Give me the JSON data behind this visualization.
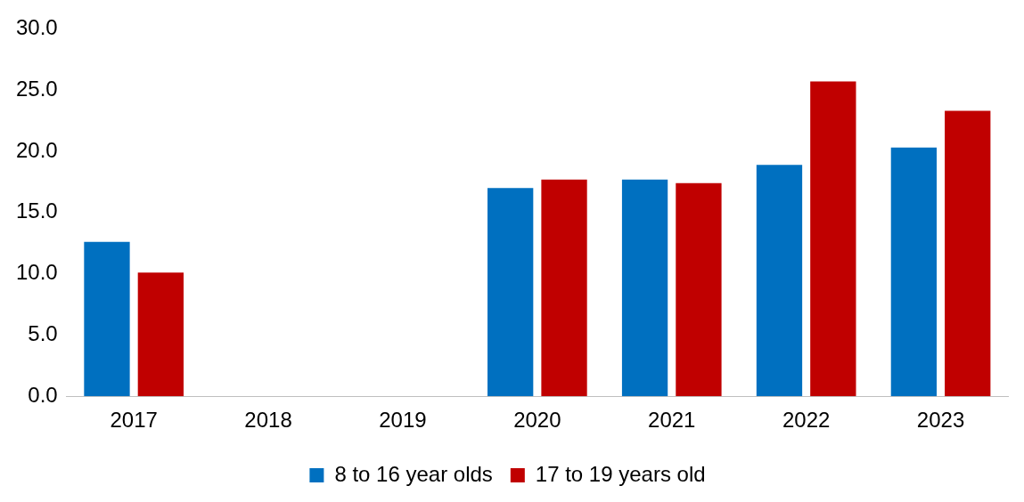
{
  "chart_data": {
    "type": "bar",
    "categories": [
      "2017",
      "2018",
      "2019",
      "2020",
      "2021",
      "2022",
      "2023"
    ],
    "series": [
      {
        "name": "8 to 16 year olds",
        "color": "#0070c0",
        "values": [
          12.6,
          null,
          null,
          17.0,
          17.7,
          18.9,
          20.3
        ]
      },
      {
        "name": "17 to 19 years old",
        "color": "#c00000",
        "values": [
          10.1,
          null,
          null,
          17.7,
          17.4,
          25.7,
          23.3
        ]
      }
    ],
    "ylim": [
      0,
      30
    ],
    "yticks": [
      {
        "value": 0,
        "label": "0.0"
      },
      {
        "value": 5,
        "label": "5.0"
      },
      {
        "value": 10,
        "label": "10.0"
      },
      {
        "value": 15,
        "label": "15.0"
      },
      {
        "value": 20,
        "label": "20.0"
      },
      {
        "value": 25,
        "label": "25.0"
      },
      {
        "value": 30,
        "label": "30.0"
      }
    ],
    "grid": false,
    "legend": "bottom"
  }
}
